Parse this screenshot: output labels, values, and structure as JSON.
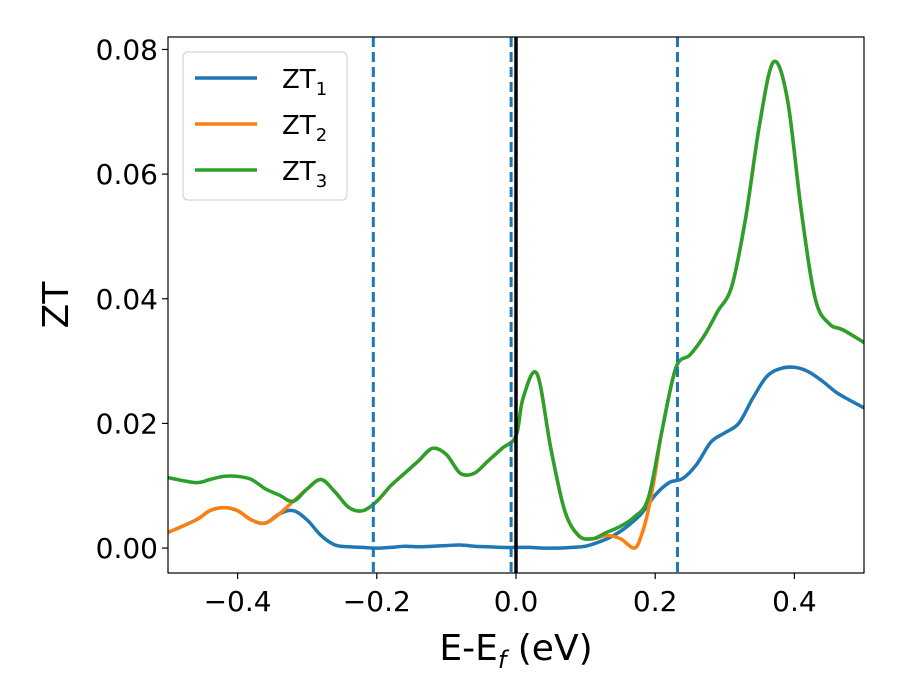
{
  "chart_data": {
    "type": "line",
    "title": "",
    "xlabel_main": "E-E",
    "xlabel_sub": "f",
    "xlabel_unit": " (eV)",
    "ylabel": "ZT",
    "xlim": [
      -0.5,
      0.5
    ],
    "ylim": [
      -0.004,
      0.082
    ],
    "xticks": [
      -0.4,
      -0.2,
      0.0,
      0.2,
      0.4
    ],
    "xtick_labels": [
      "−0.4",
      "−0.2",
      "0.0",
      "0.2",
      "0.4"
    ],
    "yticks": [
      0.0,
      0.02,
      0.04,
      0.06,
      0.08
    ],
    "ytick_labels": [
      "0.00",
      "0.02",
      "0.04",
      "0.06",
      "0.08"
    ],
    "legend_placement": "upper-left",
    "grid": false,
    "vlines": [
      {
        "x": -0.205,
        "style": "dashed",
        "color": "#1f77b4"
      },
      {
        "x": -0.007,
        "style": "dashed",
        "color": "#1f77b4"
      },
      {
        "x": 0.0,
        "style": "solid",
        "color": "#000000"
      },
      {
        "x": 0.232,
        "style": "dashed",
        "color": "#1f77b4"
      }
    ],
    "series": [
      {
        "name": "ZT",
        "sub": "1",
        "color": "#1f77b4",
        "x": [
          -0.5,
          -0.46,
          -0.44,
          -0.42,
          -0.4,
          -0.38,
          -0.36,
          -0.34,
          -0.32,
          -0.3,
          -0.28,
          -0.26,
          -0.24,
          -0.22,
          -0.2,
          -0.18,
          -0.16,
          -0.14,
          -0.12,
          -0.1,
          -0.08,
          -0.06,
          -0.04,
          -0.02,
          0.0,
          0.02,
          0.04,
          0.06,
          0.08,
          0.1,
          0.12,
          0.14,
          0.16,
          0.18,
          0.2,
          0.22,
          0.24,
          0.26,
          0.28,
          0.3,
          0.32,
          0.34,
          0.36,
          0.38,
          0.4,
          0.42,
          0.44,
          0.46,
          0.48,
          0.5
        ],
        "y": [
          0.0025,
          0.0045,
          0.006,
          0.0065,
          0.006,
          0.0045,
          0.004,
          0.0055,
          0.006,
          0.0045,
          0.002,
          0.0005,
          0.0002,
          0.0001,
          0.0,
          0.0001,
          0.0003,
          0.0002,
          0.0003,
          0.0004,
          0.0005,
          0.0003,
          0.0002,
          0.0001,
          0.0001,
          0.0001,
          0.0,
          0.0,
          0.0001,
          0.0003,
          0.001,
          0.002,
          0.0035,
          0.0055,
          0.0085,
          0.0105,
          0.0112,
          0.0135,
          0.017,
          0.0185,
          0.02,
          0.024,
          0.0275,
          0.0288,
          0.029,
          0.0283,
          0.0268,
          0.025,
          0.0237,
          0.0225
        ]
      },
      {
        "name": "ZT",
        "sub": "2",
        "color": "#ff7f0e",
        "x": [
          -0.5,
          -0.46,
          -0.44,
          -0.42,
          -0.4,
          -0.38,
          -0.36,
          -0.34,
          -0.32,
          -0.3,
          -0.28,
          -0.26,
          -0.24,
          -0.22,
          -0.2,
          -0.18,
          -0.16,
          -0.14,
          -0.12,
          -0.1,
          -0.08,
          -0.06,
          -0.04,
          -0.02,
          0.0,
          0.01,
          0.03,
          0.05,
          0.07,
          0.09,
          0.11,
          0.13,
          0.15,
          0.17,
          0.18,
          0.19,
          0.2,
          0.21,
          0.23,
          0.25,
          0.27,
          0.29,
          0.31,
          0.33,
          0.35,
          0.37,
          0.39,
          0.41,
          0.43,
          0.45,
          0.47,
          0.5
        ],
        "y": [
          0.0025,
          0.0045,
          0.006,
          0.0065,
          0.006,
          0.0045,
          0.004,
          0.0055,
          0.0075,
          0.0095,
          0.011,
          0.009,
          0.0065,
          0.006,
          0.0075,
          0.01,
          0.012,
          0.014,
          0.016,
          0.015,
          0.012,
          0.012,
          0.014,
          0.016,
          0.018,
          0.024,
          0.028,
          0.016,
          0.006,
          0.002,
          0.0015,
          0.002,
          0.0015,
          0.0,
          0.002,
          0.006,
          0.012,
          0.019,
          0.029,
          0.031,
          0.034,
          0.038,
          0.042,
          0.053,
          0.068,
          0.078,
          0.072,
          0.054,
          0.04,
          0.036,
          0.035,
          0.033
        ]
      },
      {
        "name": "ZT",
        "sub": "3",
        "color": "#2ca02c",
        "x": [
          -0.5,
          -0.46,
          -0.44,
          -0.42,
          -0.4,
          -0.38,
          -0.36,
          -0.34,
          -0.32,
          -0.3,
          -0.28,
          -0.26,
          -0.24,
          -0.22,
          -0.2,
          -0.18,
          -0.16,
          -0.14,
          -0.12,
          -0.1,
          -0.08,
          -0.06,
          -0.04,
          -0.02,
          0.0,
          0.01,
          0.03,
          0.05,
          0.07,
          0.09,
          0.11,
          0.13,
          0.15,
          0.17,
          0.19,
          0.21,
          0.23,
          0.25,
          0.27,
          0.29,
          0.31,
          0.33,
          0.35,
          0.37,
          0.39,
          0.41,
          0.43,
          0.45,
          0.47,
          0.5
        ],
        "y": [
          0.0113,
          0.0105,
          0.011,
          0.0115,
          0.0115,
          0.011,
          0.0095,
          0.0085,
          0.0075,
          0.0095,
          0.011,
          0.009,
          0.0065,
          0.006,
          0.0075,
          0.01,
          0.012,
          0.014,
          0.016,
          0.015,
          0.012,
          0.012,
          0.014,
          0.016,
          0.018,
          0.024,
          0.028,
          0.016,
          0.006,
          0.002,
          0.0015,
          0.0025,
          0.0035,
          0.005,
          0.008,
          0.019,
          0.029,
          0.031,
          0.034,
          0.038,
          0.042,
          0.053,
          0.068,
          0.078,
          0.072,
          0.054,
          0.04,
          0.036,
          0.035,
          0.033
        ]
      }
    ]
  }
}
